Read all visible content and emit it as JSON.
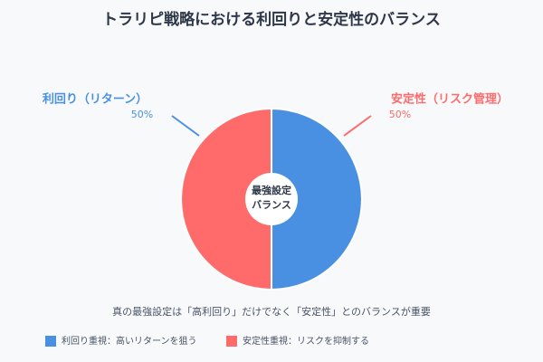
{
  "chart_data": {
    "type": "pie",
    "title": "トラリピ戦略における利回りと安定性のバランス",
    "categories": [
      "利回り（リターン）",
      "安定性（リスク管理）"
    ],
    "values": [
      50,
      50
    ],
    "value_labels": [
      "50%",
      "50%"
    ],
    "colors": [
      "#4a90e2",
      "#ff6b6b"
    ],
    "center_label": [
      "最強設定",
      "バランス"
    ],
    "caption": "真の最強設定は「高利回り」だけでなく「安定性」とのバランスが重要",
    "legend": [
      "利回り重視：高いリターンを狙う",
      "安定性重視：リスクを抑制する"
    ]
  }
}
